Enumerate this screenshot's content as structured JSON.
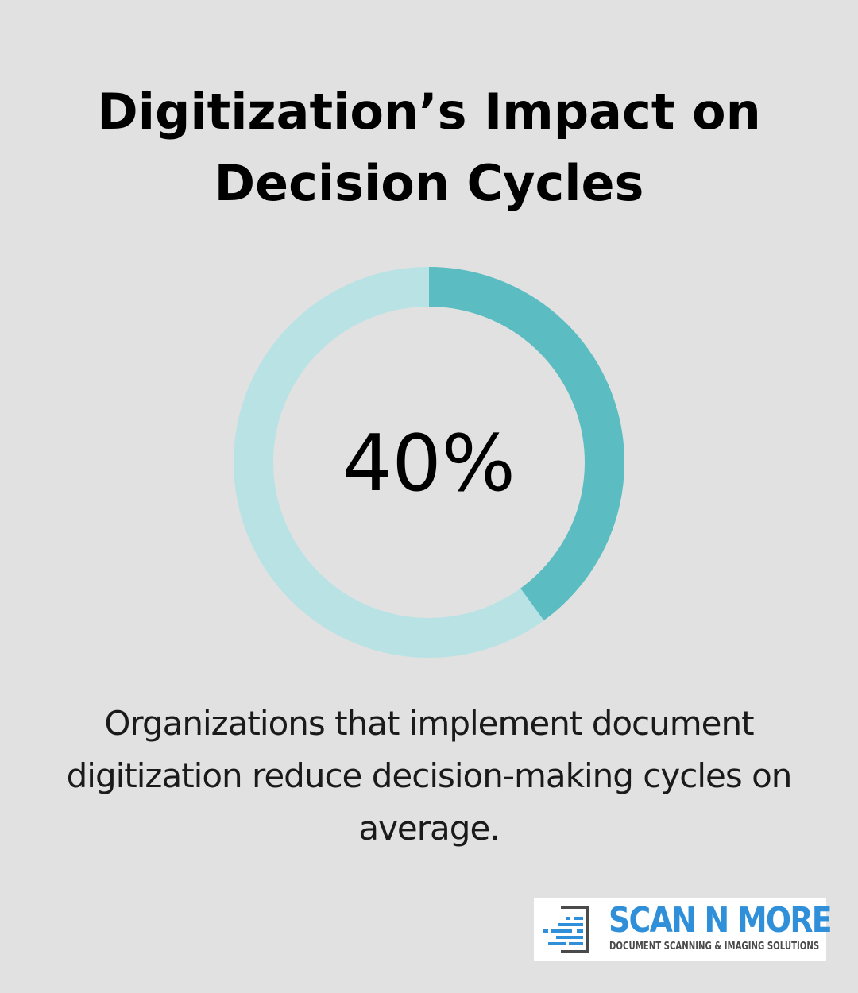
{
  "title": "Digitization’s Impact on Decision Cycles",
  "chart_data": {
    "type": "pie",
    "value": 40,
    "max": 100,
    "center_label": "40%",
    "colors": {
      "value": "#5bbcc1",
      "remainder": "#b9e2e5"
    }
  },
  "description": "Organizations that implement document digitization reduce decision-making cycles on average.",
  "logo": {
    "name": "SCAN N MORE",
    "tagline": "DOCUMENT SCANNING & IMAGING SOLUTIONS",
    "colors": {
      "primary": "#2f8fd8",
      "secondary": "#4a4a4a"
    }
  },
  "page": {
    "background": "#e0e1e0"
  }
}
